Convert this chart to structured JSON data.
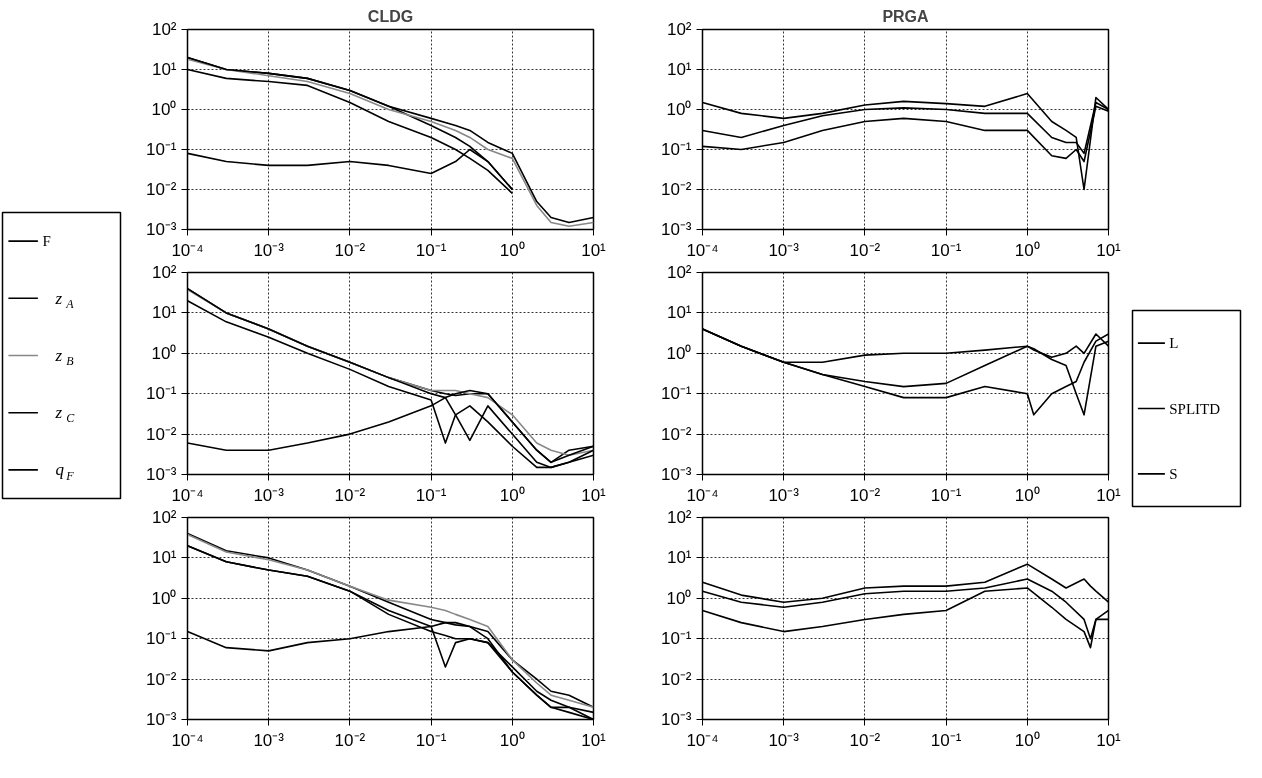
{
  "chart_data": [
    {
      "type": "line",
      "title": "CLDG",
      "x": [
        0.0001,
        0.0003,
        0.001,
        0.003,
        0.01,
        0.03,
        0.1,
        0.2,
        0.3,
        0.5,
        1,
        2,
        3,
        5,
        10
      ],
      "xlim": [
        0.0001,
        10
      ],
      "ylim": [
        0.001,
        100
      ],
      "xticks": [
        {
          "value": 0.0001,
          "label": "10⁻⁴"
        },
        {
          "value": 0.001,
          "label": "10⁻³"
        },
        {
          "value": 0.01,
          "label": "10⁻²"
        },
        {
          "value": 0.1,
          "label": "10⁻¹"
        },
        {
          "value": 1,
          "label": "10⁰"
        },
        {
          "value": 10,
          "label": "10¹"
        }
      ],
      "yticks": [
        {
          "value": 0.001,
          "label": "10⁻³"
        },
        {
          "value": 0.01,
          "label": "10⁻²"
        },
        {
          "value": 0.1,
          "label": "10⁻¹"
        },
        {
          "value": 1,
          "label": "10⁰"
        },
        {
          "value": 10,
          "label": "10¹"
        },
        {
          "value": 100,
          "label": "10²"
        }
      ],
      "log": "xy",
      "grid": true,
      "legend": "left",
      "series": [
        {
          "name": "F",
          "color": "#000000",
          "values": [
            20,
            10,
            8,
            6,
            3,
            1.2,
            0.4,
            0.2,
            0.12,
            0.05,
            0.01,
            null,
            null,
            null,
            null
          ]
        },
        {
          "name": "z$_{A}$",
          "color": "#000000",
          "values": [
            10,
            6,
            5,
            4,
            1.5,
            0.5,
            0.2,
            0.1,
            0.06,
            0.03,
            0.008,
            null,
            null,
            null,
            null
          ]
        },
        {
          "name": "z$_{B}$",
          "color": "#888888",
          "values": [
            18,
            10,
            7,
            5,
            2.5,
            1,
            0.5,
            0.3,
            0.2,
            0.1,
            0.06,
            0.004,
            0.0015,
            0.0012,
            0.0015
          ]
        },
        {
          "name": "z$_{C}$",
          "color": "#000000",
          "values": [
            20,
            10,
            8,
            6,
            3,
            1.2,
            0.6,
            0.4,
            0.3,
            0.15,
            0.08,
            0.005,
            0.002,
            0.0015,
            0.002
          ]
        },
        {
          "name": "q$_{F}$",
          "color": "#000000",
          "values": [
            0.08,
            0.05,
            0.04,
            0.04,
            0.05,
            0.04,
            0.025,
            0.05,
            0.1,
            0.05,
            0.01,
            null,
            null,
            null,
            null
          ]
        }
      ]
    },
    {
      "type": "line",
      "title": "PRGA",
      "x": [
        0.0001,
        0.0003,
        0.001,
        0.003,
        0.01,
        0.03,
        0.1,
        0.3,
        1,
        2,
        3,
        4,
        5,
        7,
        10
      ],
      "xlim": [
        0.0001,
        10
      ],
      "ylim": [
        0.001,
        100
      ],
      "xticks": [
        {
          "value": 0.0001,
          "label": "10⁻⁴"
        },
        {
          "value": 0.001,
          "label": "10⁻³"
        },
        {
          "value": 0.01,
          "label": "10⁻²"
        },
        {
          "value": 0.1,
          "label": "10⁻¹"
        },
        {
          "value": 1,
          "label": "10⁰"
        },
        {
          "value": 10,
          "label": "10¹"
        }
      ],
      "yticks": [
        {
          "value": 0.001,
          "label": "10⁻³"
        },
        {
          "value": 0.01,
          "label": "10⁻²"
        },
        {
          "value": 0.1,
          "label": "10⁻¹"
        },
        {
          "value": 1,
          "label": "10⁰"
        },
        {
          "value": 10,
          "label": "10¹"
        },
        {
          "value": 100,
          "label": "10²"
        }
      ],
      "log": "xy",
      "grid": true,
      "legend": "right",
      "series": [
        {
          "name": "L",
          "color": "#000000",
          "values": [
            1.5,
            0.8,
            0.6,
            0.8,
            1.3,
            1.6,
            1.4,
            1.2,
            2.5,
            0.5,
            0.3,
            0.2,
            0.01,
            2,
            1
          ]
        },
        {
          "name": "SPLITD",
          "color": "#000000",
          "values": [
            0.3,
            0.2,
            0.4,
            0.7,
            1,
            1.1,
            1,
            0.8,
            0.8,
            0.2,
            0.15,
            0.15,
            0.08,
            1.5,
            1
          ]
        },
        {
          "name": "S",
          "color": "#000000",
          "values": [
            0.12,
            0.1,
            0.15,
            0.3,
            0.5,
            0.6,
            0.5,
            0.3,
            0.3,
            0.07,
            0.06,
            0.1,
            0.05,
            1.2,
            0.9
          ]
        }
      ]
    },
    {
      "type": "line",
      "x": [
        0.0001,
        0.0003,
        0.001,
        0.003,
        0.01,
        0.03,
        0.1,
        0.15,
        0.2,
        0.3,
        0.5,
        1,
        2,
        3,
        5,
        10
      ],
      "xlim": [
        0.0001,
        10
      ],
      "ylim": [
        0.001,
        100
      ],
      "xticks": [
        {
          "value": 0.0001,
          "label": "10⁻⁴"
        },
        {
          "value": 0.001,
          "label": "10⁻³"
        },
        {
          "value": 0.01,
          "label": "10⁻²"
        },
        {
          "value": 0.1,
          "label": "10⁻¹"
        },
        {
          "value": 1,
          "label": "10⁰"
        },
        {
          "value": 10,
          "label": "10¹"
        }
      ],
      "yticks": [
        {
          "value": 0.001,
          "label": "10⁻³"
        },
        {
          "value": 0.01,
          "label": "10⁻²"
        },
        {
          "value": 0.1,
          "label": "10⁻¹"
        },
        {
          "value": 1,
          "label": "10⁰"
        },
        {
          "value": 10,
          "label": "10¹"
        },
        {
          "value": 100,
          "label": "10²"
        }
      ],
      "log": "xy",
      "grid": true,
      "legend": "left",
      "series": [
        {
          "name": "F",
          "color": "#000000",
          "values": [
            40,
            10,
            4,
            1.5,
            0.6,
            0.25,
            0.12,
            0.1,
            0.09,
            0.1,
            0.1,
            0.02,
            0.004,
            0.002,
            0.004,
            0.005
          ]
        },
        {
          "name": "z$_{A}$",
          "color": "#000000",
          "values": [
            20,
            6,
            2.5,
            1,
            0.4,
            0.15,
            0.07,
            0.006,
            0.03,
            0.05,
            0.02,
            0.005,
            0.0015,
            0.0015,
            0.002,
            0.003
          ]
        },
        {
          "name": "z$_{B}$",
          "color": "#888888",
          "values": [
            38,
            10,
            4,
            1.5,
            0.6,
            0.25,
            0.12,
            0.12,
            0.12,
            0.1,
            0.08,
            0.03,
            0.006,
            0.004,
            0.003,
            0.004
          ]
        },
        {
          "name": "z$_{C}$",
          "color": "#000000",
          "values": [
            40,
            10,
            4,
            1.5,
            0.6,
            0.25,
            0.1,
            0.08,
            0.03,
            0.007,
            0.05,
            0.01,
            0.002,
            0.0015,
            0.002,
            0.004
          ]
        },
        {
          "name": "q$_{F}$",
          "color": "#000000",
          "values": [
            0.006,
            0.004,
            0.004,
            0.006,
            0.01,
            0.02,
            0.05,
            0.08,
            0.1,
            0.12,
            0.1,
            0.02,
            0.004,
            0.002,
            0.003,
            0.005
          ]
        }
      ]
    },
    {
      "type": "line",
      "x": [
        0.0001,
        0.0003,
        0.001,
        0.003,
        0.01,
        0.03,
        0.1,
        0.3,
        1,
        1.2,
        2,
        3,
        4,
        5,
        7,
        10
      ],
      "xlim": [
        0.0001,
        10
      ],
      "ylim": [
        0.001,
        100
      ],
      "xticks": [
        {
          "value": 0.0001,
          "label": "10⁻⁴"
        },
        {
          "value": 0.001,
          "label": "10⁻³"
        },
        {
          "value": 0.01,
          "label": "10⁻²"
        },
        {
          "value": 0.1,
          "label": "10⁻¹"
        },
        {
          "value": 1,
          "label": "10⁰"
        },
        {
          "value": 10,
          "label": "10¹"
        }
      ],
      "yticks": [
        {
          "value": 0.001,
          "label": "10⁻³"
        },
        {
          "value": 0.01,
          "label": "10⁻²"
        },
        {
          "value": 0.1,
          "label": "10⁻¹"
        },
        {
          "value": 1,
          "label": "10⁰"
        },
        {
          "value": 10,
          "label": "10¹"
        },
        {
          "value": 100,
          "label": "10²"
        }
      ],
      "log": "xy",
      "grid": true,
      "legend": "right",
      "series": [
        {
          "name": "L",
          "color": "#000000",
          "values": [
            4,
            1.5,
            0.6,
            0.6,
            0.9,
            1,
            1,
            1.2,
            1.5,
            1.2,
            0.8,
            1,
            1.5,
            1,
            3,
            1.5
          ]
        },
        {
          "name": "SPLITD",
          "color": "#000000",
          "values": [
            4,
            1.5,
            0.6,
            0.3,
            0.2,
            0.15,
            0.18,
            0.5,
            1.5,
            1.3,
            0.7,
            0.5,
            0.1,
            0.03,
            1.5,
            2
          ]
        },
        {
          "name": "S",
          "color": "#000000",
          "values": [
            4,
            1.5,
            0.6,
            0.3,
            0.15,
            0.08,
            0.08,
            0.15,
            0.1,
            0.03,
            0.1,
            0.15,
            0.2,
            0.6,
            2,
            3
          ]
        }
      ]
    },
    {
      "type": "line",
      "x": [
        0.0001,
        0.0003,
        0.001,
        0.003,
        0.01,
        0.03,
        0.1,
        0.15,
        0.2,
        0.3,
        0.5,
        1,
        2,
        3,
        5,
        10
      ],
      "xlim": [
        0.0001,
        10
      ],
      "ylim": [
        0.001,
        100
      ],
      "xticks": [
        {
          "value": 0.0001,
          "label": "10⁻⁴"
        },
        {
          "value": 0.001,
          "label": "10⁻³"
        },
        {
          "value": 0.01,
          "label": "10⁻²"
        },
        {
          "value": 0.1,
          "label": "10⁻¹"
        },
        {
          "value": 1,
          "label": "10⁰"
        },
        {
          "value": 10,
          "label": "10¹"
        }
      ],
      "yticks": [
        {
          "value": 0.001,
          "label": "10⁻³"
        },
        {
          "value": 0.01,
          "label": "10⁻²"
        },
        {
          "value": 0.1,
          "label": "10⁻¹"
        },
        {
          "value": 1,
          "label": "10⁰"
        },
        {
          "value": 10,
          "label": "10¹"
        },
        {
          "value": 100,
          "label": "10²"
        }
      ],
      "log": "xy",
      "grid": true,
      "legend": "left",
      "series": [
        {
          "name": "F",
          "color": "#000000",
          "values": [
            40,
            15,
            10,
            5,
            2,
            0.8,
            0.3,
            0.25,
            0.22,
            0.2,
            0.15,
            0.03,
            0.01,
            0.005,
            0.004,
            0.002
          ]
        },
        {
          "name": "z$_{A}$",
          "color": "#000000",
          "values": [
            20,
            8,
            5,
            3.5,
            1.5,
            0.5,
            0.2,
            0.02,
            0.08,
            0.1,
            0.08,
            0.02,
            0.005,
            0.003,
            0.002,
            0.001
          ]
        },
        {
          "name": "z$_{B}$",
          "color": "#888888",
          "values": [
            38,
            14,
            9,
            5,
            2,
            0.9,
            0.6,
            0.5,
            0.4,
            0.3,
            0.2,
            0.03,
            0.008,
            0.004,
            0.003,
            0.002
          ]
        },
        {
          "name": "z$_{C}$",
          "color": "#000000",
          "values": [
            20,
            8,
            5,
            3.5,
            1.5,
            0.4,
            0.15,
            0.12,
            0.1,
            0.1,
            0.08,
            0.015,
            0.004,
            0.002,
            0.0015,
            0.001
          ]
        },
        {
          "name": "q$_{F}$",
          "color": "#000000",
          "values": [
            0.15,
            0.06,
            0.05,
            0.08,
            0.1,
            0.15,
            0.2,
            0.25,
            0.25,
            0.2,
            0.1,
            0.015,
            0.004,
            0.002,
            0.002,
            0.0015
          ]
        }
      ]
    },
    {
      "type": "line",
      "x": [
        0.0001,
        0.0003,
        0.001,
        0.003,
        0.01,
        0.03,
        0.1,
        0.3,
        1,
        2,
        3,
        5,
        6,
        7,
        10
      ],
      "xlim": [
        0.0001,
        10
      ],
      "ylim": [
        0.001,
        100
      ],
      "xticks": [
        {
          "value": 0.0001,
          "label": "10⁻⁴"
        },
        {
          "value": 0.001,
          "label": "10⁻³"
        },
        {
          "value": 0.01,
          "label": "10⁻²"
        },
        {
          "value": 0.1,
          "label": "10⁻¹"
        },
        {
          "value": 1,
          "label": "10⁰"
        },
        {
          "value": 10,
          "label": "10¹"
        }
      ],
      "yticks": [
        {
          "value": 0.001,
          "label": "10⁻³"
        },
        {
          "value": 0.01,
          "label": "10⁻²"
        },
        {
          "value": 0.1,
          "label": "10⁻¹"
        },
        {
          "value": 1,
          "label": "10⁰"
        },
        {
          "value": 10,
          "label": "10¹"
        },
        {
          "value": 100,
          "label": "10²"
        }
      ],
      "log": "xy",
      "grid": true,
      "legend": "right",
      "series": [
        {
          "name": "L",
          "color": "#000000",
          "values": [
            2.5,
            1.2,
            0.8,
            1,
            1.8,
            2,
            2,
            2.5,
            7,
            3,
            1.8,
            3,
            2,
            1.5,
            0.8
          ]
        },
        {
          "name": "SPLITD",
          "color": "#000000",
          "values": [
            1.5,
            0.8,
            0.6,
            0.8,
            1.3,
            1.5,
            1.5,
            1.8,
            3,
            1.5,
            0.8,
            0.3,
            0.1,
            0.3,
            0.5
          ]
        },
        {
          "name": "S",
          "color": "#000000",
          "values": [
            0.5,
            0.25,
            0.15,
            0.2,
            0.3,
            0.4,
            0.5,
            1.5,
            1.8,
            0.6,
            0.3,
            0.15,
            0.06,
            0.3,
            0.3
          ]
        }
      ]
    }
  ]
}
